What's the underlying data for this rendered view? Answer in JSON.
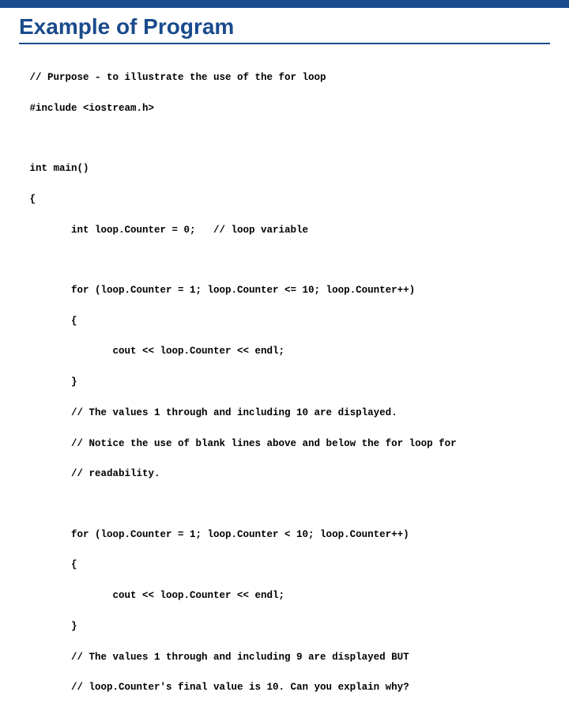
{
  "colors": {
    "topbar": "#1a4b8c",
    "title": "#1a4b8c",
    "underline": "#1a4b8c",
    "code_text": "#000000",
    "background": "#ffffff"
  },
  "title": "Example of Program",
  "code": {
    "l1": " // Purpose - to illustrate the use of the for loop",
    "l2": " #include <iostream.h>",
    "l3": " int main()",
    "l4": " {",
    "l5": "        int loop.Counter = 0;   // loop variable",
    "l6": "        for (loop.Counter = 1; loop.Counter <= 10; loop.Counter++)",
    "l7": "        {",
    "l8": "               cout << loop.Counter << endl;",
    "l9": "        }",
    "l10": "        // The values 1 through and including 10 are displayed.",
    "l11": "        // Notice the use of blank lines above and below the for loop for",
    "l12": "        // readability.",
    "l13": "        for (loop.Counter = 1; loop.Counter < 10; loop.Counter++)",
    "l14": "        {",
    "l15": "               cout << loop.Counter << endl;",
    "l16": "        }",
    "l17": "        // The values 1 through and including 9 are displayed BUT",
    "l18": "        // loop.Counter's final value is 10. Can you explain why?"
  }
}
